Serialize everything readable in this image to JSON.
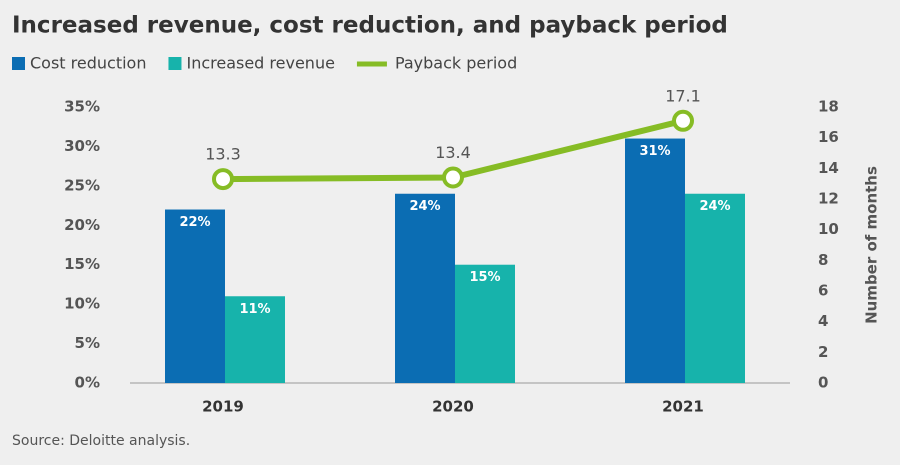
{
  "chart_data": {
    "type": "bar",
    "title": "Increased revenue, cost reduction, and payback period",
    "source": "Source: Deloitte analysis.",
    "categories": [
      "2019",
      "2020",
      "2021"
    ],
    "series": [
      {
        "name": "Cost reduction",
        "color": "#0b6db3",
        "values": [
          22,
          24,
          31
        ],
        "value_labels": [
          "22%",
          "24%",
          "31%"
        ]
      },
      {
        "name": "Increased revenue",
        "color": "#17b3ab",
        "values": [
          11,
          15,
          24
        ],
        "value_labels": [
          "11%",
          "15%",
          "24%"
        ]
      },
      {
        "name": "Payback period",
        "color": "#86bc25",
        "type": "line",
        "axis": "y2",
        "values": [
          13.3,
          13.4,
          17.1
        ]
      }
    ],
    "ylim": [
      0,
      35
    ],
    "yticks": [
      {
        "value": 0,
        "label": "0%"
      },
      {
        "value": 5,
        "label": "5%"
      },
      {
        "value": 10,
        "label": "10%"
      },
      {
        "value": 15,
        "label": "15%"
      },
      {
        "value": 20,
        "label": "20%"
      },
      {
        "value": 25,
        "label": "25%"
      },
      {
        "value": 30,
        "label": "30%"
      },
      {
        "value": 35,
        "label": "35%"
      }
    ],
    "y2lim": [
      0,
      18
    ],
    "y2ticks": [
      0,
      2,
      4,
      6,
      8,
      10,
      12,
      14,
      16,
      18
    ],
    "y2_label": "Number of months"
  }
}
